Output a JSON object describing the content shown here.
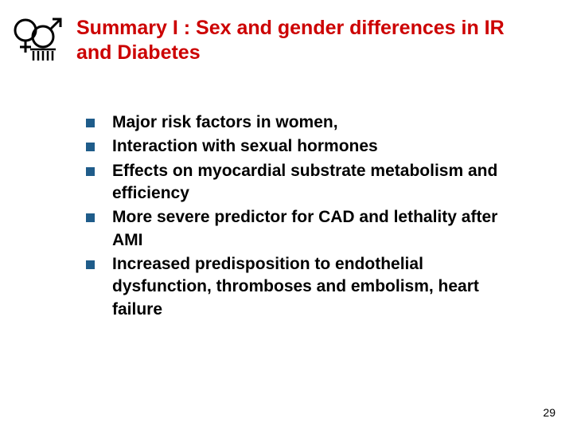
{
  "colors": {
    "title": "#cc0000",
    "body_text": "#000000",
    "bullet_marker": "#1f5c8a",
    "page_number": "#000000",
    "background": "#ffffff",
    "logo_stroke": "#000000"
  },
  "typography": {
    "title_fontsize": 25,
    "body_fontsize": 21,
    "pagenum_fontsize": 14,
    "font_family": "Arial"
  },
  "title": "Summary I : Sex and gender differences in IR and Diabetes",
  "bullets": [
    "Major risk factors in women,",
    "Interaction with sexual hormones",
    "Effects on myocardial substrate metabolism and efficiency",
    "More severe predictor for CAD and lethality after AMI",
    "Increased predisposition to endothelial dysfunction, thromboses and embolism, heart failure"
  ],
  "page_number": "29"
}
